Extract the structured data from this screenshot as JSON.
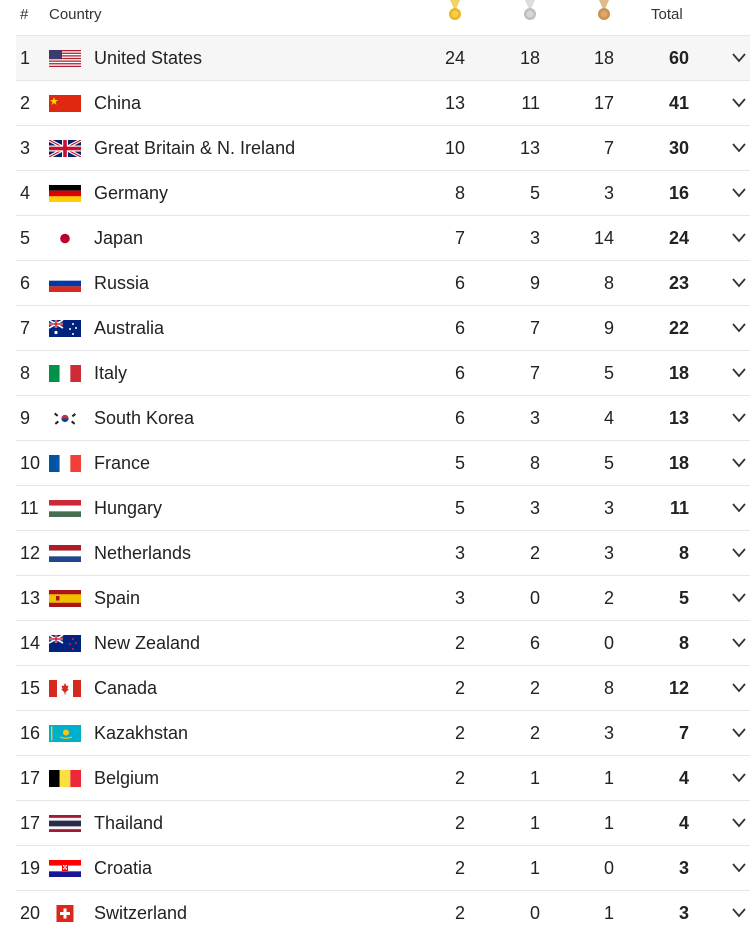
{
  "header": {
    "rank": "#",
    "country": "Country",
    "total": "Total",
    "medal_icons": [
      "gold-medal-icon",
      "silver-medal-icon",
      "bronze-medal-icon"
    ]
  },
  "colors": {
    "gold": "#e8b823",
    "silver": "#bfbfbf",
    "bronze": "#c9914e",
    "row_highlight": "#f6f6f6"
  },
  "rows": [
    {
      "rank": "1",
      "country": "United States",
      "gold": "24",
      "silver": "18",
      "bronze": "18",
      "total": "60",
      "flag": "us-flag-icon"
    },
    {
      "rank": "2",
      "country": "China",
      "gold": "13",
      "silver": "11",
      "bronze": "17",
      "total": "41",
      "flag": "china-flag-icon"
    },
    {
      "rank": "3",
      "country": "Great Britain & N. Ireland",
      "gold": "10",
      "silver": "13",
      "bronze": "7",
      "total": "30",
      "flag": "uk-flag-icon"
    },
    {
      "rank": "4",
      "country": "Germany",
      "gold": "8",
      "silver": "5",
      "bronze": "3",
      "total": "16",
      "flag": "germany-flag-icon"
    },
    {
      "rank": "5",
      "country": "Japan",
      "gold": "7",
      "silver": "3",
      "bronze": "14",
      "total": "24",
      "flag": "japan-flag-icon"
    },
    {
      "rank": "6",
      "country": "Russia",
      "gold": "6",
      "silver": "9",
      "bronze": "8",
      "total": "23",
      "flag": "russia-flag-icon"
    },
    {
      "rank": "7",
      "country": "Australia",
      "gold": "6",
      "silver": "7",
      "bronze": "9",
      "total": "22",
      "flag": "australia-flag-icon"
    },
    {
      "rank": "8",
      "country": "Italy",
      "gold": "6",
      "silver": "7",
      "bronze": "5",
      "total": "18",
      "flag": "italy-flag-icon"
    },
    {
      "rank": "9",
      "country": "South Korea",
      "gold": "6",
      "silver": "3",
      "bronze": "4",
      "total": "13",
      "flag": "south-korea-flag-icon"
    },
    {
      "rank": "10",
      "country": "France",
      "gold": "5",
      "silver": "8",
      "bronze": "5",
      "total": "18",
      "flag": "france-flag-icon"
    },
    {
      "rank": "11",
      "country": "Hungary",
      "gold": "5",
      "silver": "3",
      "bronze": "3",
      "total": "11",
      "flag": "hungary-flag-icon"
    },
    {
      "rank": "12",
      "country": "Netherlands",
      "gold": "3",
      "silver": "2",
      "bronze": "3",
      "total": "8",
      "flag": "netherlands-flag-icon"
    },
    {
      "rank": "13",
      "country": "Spain",
      "gold": "3",
      "silver": "0",
      "bronze": "2",
      "total": "5",
      "flag": "spain-flag-icon"
    },
    {
      "rank": "14",
      "country": "New Zealand",
      "gold": "2",
      "silver": "6",
      "bronze": "0",
      "total": "8",
      "flag": "new-zealand-flag-icon"
    },
    {
      "rank": "15",
      "country": "Canada",
      "gold": "2",
      "silver": "2",
      "bronze": "8",
      "total": "12",
      "flag": "canada-flag-icon"
    },
    {
      "rank": "16",
      "country": "Kazakhstan",
      "gold": "2",
      "silver": "2",
      "bronze": "3",
      "total": "7",
      "flag": "kazakhstan-flag-icon"
    },
    {
      "rank": "17",
      "country": "Belgium",
      "gold": "2",
      "silver": "1",
      "bronze": "1",
      "total": "4",
      "flag": "belgium-flag-icon"
    },
    {
      "rank": "17",
      "country": "Thailand",
      "gold": "2",
      "silver": "1",
      "bronze": "1",
      "total": "4",
      "flag": "thailand-flag-icon"
    },
    {
      "rank": "19",
      "country": "Croatia",
      "gold": "2",
      "silver": "1",
      "bronze": "0",
      "total": "3",
      "flag": "croatia-flag-icon"
    },
    {
      "rank": "20",
      "country": "Switzerland",
      "gold": "2",
      "silver": "0",
      "bronze": "1",
      "total": "3",
      "flag": "switzerland-flag-icon"
    }
  ]
}
